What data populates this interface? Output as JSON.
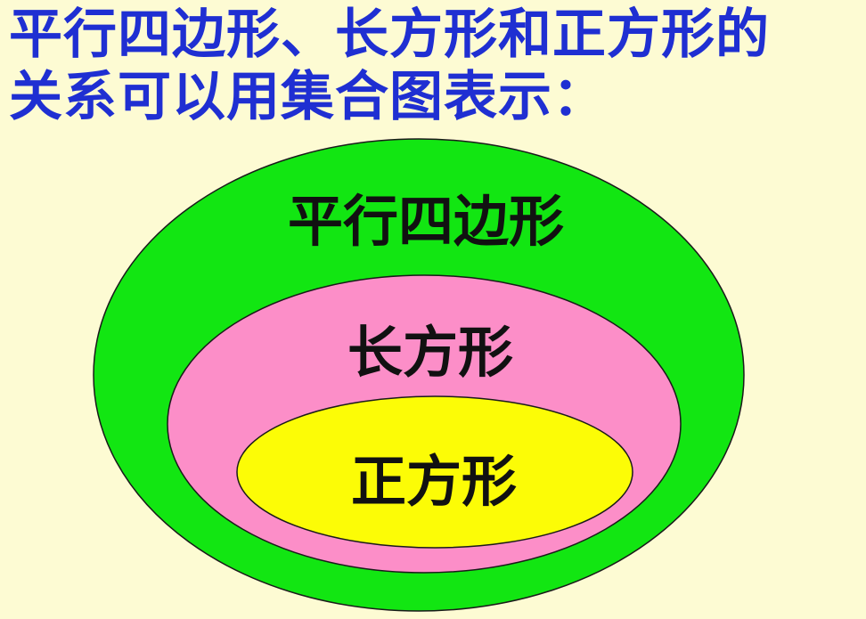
{
  "heading": {
    "line1": "平行四边形、长方形和正方形的",
    "line2": "关系可以用集合图表示："
  },
  "diagram": {
    "sets": [
      {
        "label": "平行四边形",
        "color": "#12e612"
      },
      {
        "label": "长方形",
        "color": "#fc8ec8"
      },
      {
        "label": "正方形",
        "color": "#fcfc06"
      }
    ],
    "background_color": "#fdfbd3",
    "heading_color": "#1f2fd2",
    "outline_color": "#1a1a1a"
  }
}
